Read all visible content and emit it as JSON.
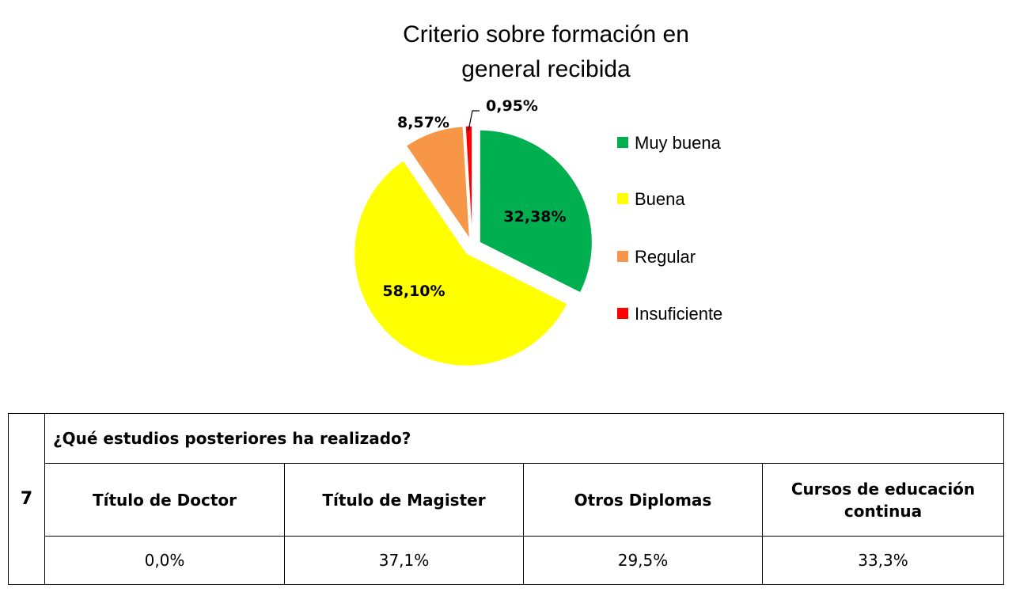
{
  "chart_data": {
    "type": "pie",
    "title": "Criterio sobre formación en general recibida",
    "title_lines": [
      "Criterio sobre formación en",
      "general recibida"
    ],
    "slices": [
      {
        "label": "Muy buena",
        "value": 32.38,
        "display": "32,38%",
        "color": "#00b050"
      },
      {
        "label": "Buena",
        "value": 58.1,
        "display": "58,10%",
        "color": "#ffff00"
      },
      {
        "label": "Regular",
        "value": 8.57,
        "display": "8,57%",
        "color": "#f79646"
      },
      {
        "label": "Insuficiente",
        "value": 0.95,
        "display": "0,95%",
        "color": "#ff0000"
      }
    ],
    "legend_position": "right"
  },
  "table": {
    "number": "7",
    "question": "¿Qué estudios posteriores ha realizado?",
    "headers": [
      "Título de Doctor",
      "Título de Magister",
      "Otros Diplomas",
      "Cursos de educación continua"
    ],
    "values": [
      "0,0%",
      "37,1%",
      "29,5%",
      "33,3%"
    ]
  }
}
